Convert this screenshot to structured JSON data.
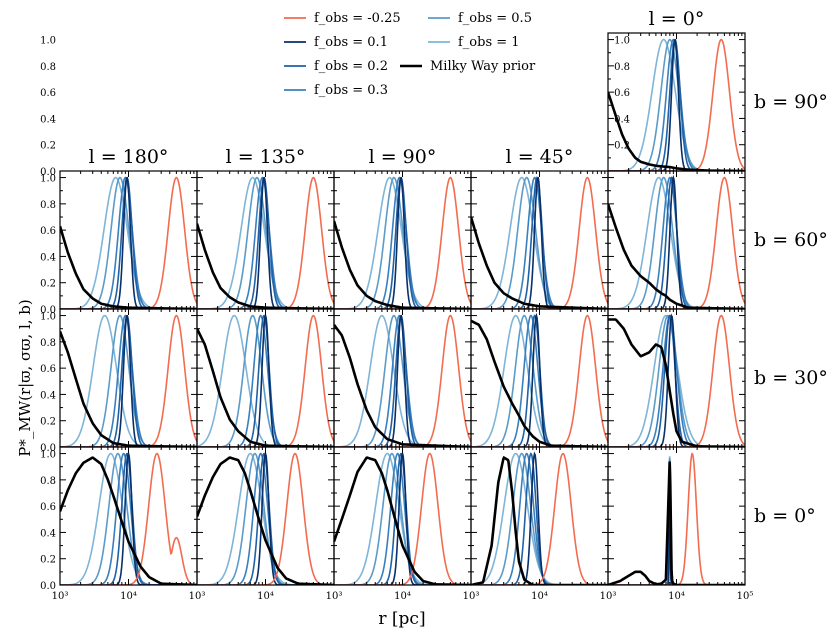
{
  "colors": {
    "f_m025": "#f26c4f",
    "f_01": "#08306b",
    "f_02": "#2161a6",
    "f_03": "#3a7fbd",
    "f_05": "#5a9bc9",
    "f_1": "#7eb5d8",
    "prior": "#000000"
  },
  "chart_data": {
    "type": "line",
    "figure": {
      "xlabel": "r [pc]",
      "ylabel": "P*_MW(r|ϖ, σϖ, l, b)",
      "xscale": "log",
      "xlim": [
        1000,
        100000
      ],
      "ylim": [
        0.0,
        1.05
      ],
      "xticklabels": [
        "10³",
        "10⁴",
        "10⁵"
      ],
      "yticks": [
        0.0,
        0.2,
        0.4,
        0.6,
        0.8,
        1.0
      ],
      "ytick_labels": [
        "0.0",
        "0.2",
        "0.4",
        "0.6",
        "0.8",
        "1.0"
      ],
      "col_titles": [
        "l = 180°",
        "l = 135°",
        "l = 90°",
        "l = 45°"
      ],
      "top_title": "l = 0°",
      "row_labels": [
        "b = 90°",
        "b = 60°",
        "b = 30°",
        "b = 0°"
      ],
      "legend": {
        "placement": "top-center",
        "entries": [
          {
            "label": "f_obs = -0.25",
            "key": "f_m025"
          },
          {
            "label": "f_obs = 0.1",
            "key": "f_01"
          },
          {
            "label": "f_obs = 0.2",
            "key": "f_02"
          },
          {
            "label": "f_obs = 0.3",
            "key": "f_03"
          },
          {
            "label": "f_obs = 0.5",
            "key": "f_05"
          },
          {
            "label": "f_obs = 1",
            "key": "f_1"
          },
          {
            "label": "Milky Way prior",
            "key": "prior"
          }
        ]
      }
    },
    "panels": [
      {
        "l": 0,
        "b": 90,
        "peaks": {
          "f_m025": 45000,
          "f_01": 9500,
          "f_02": 9500,
          "f_03": 9000,
          "f_05": 8000,
          "f_1": 6500
        },
        "prior": [
          [
            1000,
            0.6
          ],
          [
            1300,
            0.42
          ],
          [
            1600,
            0.28
          ],
          [
            2000,
            0.17
          ],
          [
            2500,
            0.1
          ],
          [
            3000,
            0.07
          ],
          [
            4000,
            0.05
          ],
          [
            5000,
            0.04
          ],
          [
            6000,
            0.035
          ],
          [
            8000,
            0.03
          ],
          [
            10000,
            0.02
          ],
          [
            15000,
            0.01
          ],
          [
            30000,
            0.003
          ],
          [
            100000,
            0
          ]
        ]
      },
      {
        "l": 180,
        "b": 60,
        "peaks": {
          "f_m025": 50000,
          "f_01": 9500,
          "f_02": 9500,
          "f_03": 9000,
          "f_05": 7500,
          "f_1": 6500
        },
        "prior": [
          [
            1000,
            0.63
          ],
          [
            1300,
            0.43
          ],
          [
            1700,
            0.27
          ],
          [
            2200,
            0.15
          ],
          [
            3000,
            0.08
          ],
          [
            4000,
            0.04
          ],
          [
            6000,
            0.02
          ],
          [
            10000,
            0.01
          ],
          [
            100000,
            0
          ]
        ]
      },
      {
        "l": 135,
        "b": 60,
        "peaks": {
          "f_m025": 50000,
          "f_01": 9500,
          "f_02": 9500,
          "f_03": 9000,
          "f_05": 7500,
          "f_1": 6500
        },
        "prior": [
          [
            1000,
            0.65
          ],
          [
            1300,
            0.45
          ],
          [
            1700,
            0.28
          ],
          [
            2200,
            0.16
          ],
          [
            3000,
            0.09
          ],
          [
            4000,
            0.05
          ],
          [
            6000,
            0.02
          ],
          [
            10000,
            0.01
          ],
          [
            100000,
            0
          ]
        ]
      },
      {
        "l": 90,
        "b": 60,
        "peaks": {
          "f_m025": 50000,
          "f_01": 9500,
          "f_02": 9500,
          "f_03": 9000,
          "f_05": 7500,
          "f_1": 6500
        },
        "prior": [
          [
            1000,
            0.67
          ],
          [
            1300,
            0.47
          ],
          [
            1700,
            0.3
          ],
          [
            2200,
            0.18
          ],
          [
            3000,
            0.1
          ],
          [
            4000,
            0.06
          ],
          [
            6000,
            0.03
          ],
          [
            10000,
            0.01
          ],
          [
            100000,
            0
          ]
        ]
      },
      {
        "l": 45,
        "b": 60,
        "peaks": {
          "f_m025": 50000,
          "f_01": 9500,
          "f_02": 9200,
          "f_03": 8500,
          "f_05": 6500,
          "f_1": 5500
        },
        "prior": [
          [
            1000,
            0.7
          ],
          [
            1300,
            0.5
          ],
          [
            1700,
            0.33
          ],
          [
            2200,
            0.2
          ],
          [
            3000,
            0.12
          ],
          [
            4000,
            0.08
          ],
          [
            6000,
            0.04
          ],
          [
            10000,
            0.02
          ],
          [
            100000,
            0
          ]
        ]
      },
      {
        "l": 0,
        "b": 60,
        "peaks": {
          "f_m025": 50000,
          "f_01": 9000,
          "f_02": 8500,
          "f_03": 8000,
          "f_05": 6500,
          "f_1": 5500
        },
        "prior": [
          [
            1000,
            0.8
          ],
          [
            1300,
            0.62
          ],
          [
            1700,
            0.45
          ],
          [
            2200,
            0.33
          ],
          [
            3000,
            0.25
          ],
          [
            4000,
            0.2
          ],
          [
            5000,
            0.15
          ],
          [
            6000,
            0.12
          ],
          [
            7000,
            0.1
          ],
          [
            8000,
            0.07
          ],
          [
            10000,
            0.04
          ],
          [
            15000,
            0.01
          ],
          [
            100000,
            0
          ]
        ]
      },
      {
        "l": 180,
        "b": 30,
        "peaks": {
          "f_m025": 50000,
          "f_01": 9500,
          "f_02": 9500,
          "f_03": 9000,
          "f_05": 7500,
          "f_1": 4500
        },
        "prior": [
          [
            1000,
            0.88
          ],
          [
            1300,
            0.72
          ],
          [
            1700,
            0.52
          ],
          [
            2200,
            0.33
          ],
          [
            3000,
            0.18
          ],
          [
            4000,
            0.09
          ],
          [
            6000,
            0.03
          ],
          [
            10000,
            0.01
          ],
          [
            100000,
            0
          ]
        ]
      },
      {
        "l": 135,
        "b": 30,
        "peaks": {
          "f_m025": 50000,
          "f_01": 10000,
          "f_02": 9500,
          "f_03": 8500,
          "f_05": 6500,
          "f_1": 3500
        },
        "prior": [
          [
            1000,
            0.9
          ],
          [
            1300,
            0.78
          ],
          [
            1700,
            0.58
          ],
          [
            2200,
            0.38
          ],
          [
            3000,
            0.21
          ],
          [
            4000,
            0.12
          ],
          [
            6000,
            0.04
          ],
          [
            10000,
            0.01
          ],
          [
            100000,
            0
          ]
        ]
      },
      {
        "l": 90,
        "b": 30,
        "peaks": {
          "f_m025": 50000,
          "f_01": 9500,
          "f_02": 9500,
          "f_03": 9000,
          "f_05": 7500,
          "f_1": 5000
        },
        "prior": [
          [
            1000,
            0.93
          ],
          [
            1300,
            0.85
          ],
          [
            1700,
            0.68
          ],
          [
            2200,
            0.48
          ],
          [
            3000,
            0.28
          ],
          [
            4000,
            0.15
          ],
          [
            6000,
            0.06
          ],
          [
            10000,
            0.02
          ],
          [
            100000,
            0
          ]
        ]
      },
      {
        "l": 45,
        "b": 30,
        "peaks": {
          "f_m025": 50000,
          "f_01": 9000,
          "f_02": 8500,
          "f_03": 7500,
          "f_05": 6000,
          "f_1": 4500
        },
        "prior": [
          [
            1000,
            0.96
          ],
          [
            1300,
            0.93
          ],
          [
            1700,
            0.82
          ],
          [
            2200,
            0.65
          ],
          [
            3000,
            0.46
          ],
          [
            4000,
            0.33
          ],
          [
            5000,
            0.24
          ],
          [
            6000,
            0.16
          ],
          [
            8000,
            0.08
          ],
          [
            10000,
            0.04
          ],
          [
            15000,
            0.01
          ],
          [
            100000,
            0
          ]
        ]
      },
      {
        "l": 0,
        "b": 30,
        "peaks": {
          "f_m025": 45000,
          "f_01": 8500,
          "f_02": 8000,
          "f_03": 8000,
          "f_05": 7500,
          "f_1": 7000
        },
        "prior": [
          [
            1000,
            0.97
          ],
          [
            1300,
            0.97
          ],
          [
            1700,
            0.9
          ],
          [
            2200,
            0.78
          ],
          [
            3000,
            0.69
          ],
          [
            4000,
            0.72
          ],
          [
            5000,
            0.78
          ],
          [
            6000,
            0.76
          ],
          [
            7000,
            0.62
          ],
          [
            8000,
            0.42
          ],
          [
            9000,
            0.25
          ],
          [
            10000,
            0.12
          ],
          [
            12000,
            0.04
          ],
          [
            20000,
            0.005
          ],
          [
            100000,
            0
          ]
        ]
      },
      {
        "l": 180,
        "b": 0,
        "peaks": {
          "f_m025": 26000,
          "f_01": 10000,
          "f_02": 9500,
          "f_03": 8500,
          "f_05": 7000,
          "f_1": 5500
        },
        "prior": [
          [
            1000,
            0.56
          ],
          [
            1300,
            0.72
          ],
          [
            1700,
            0.85
          ],
          [
            2200,
            0.93
          ],
          [
            3000,
            0.97
          ],
          [
            4000,
            0.92
          ],
          [
            5000,
            0.8
          ],
          [
            6000,
            0.68
          ],
          [
            8000,
            0.48
          ],
          [
            10000,
            0.33
          ],
          [
            15000,
            0.14
          ],
          [
            20000,
            0.06
          ],
          [
            30000,
            0.01
          ],
          [
            100000,
            0
          ]
        ],
        "neg_shoulder": true
      },
      {
        "l": 135,
        "b": 0,
        "peaks": {
          "f_m025": 27000,
          "f_01": 10000,
          "f_02": 9500,
          "f_03": 8500,
          "f_05": 7000,
          "f_1": 6000
        },
        "prior": [
          [
            1000,
            0.52
          ],
          [
            1300,
            0.68
          ],
          [
            1700,
            0.82
          ],
          [
            2200,
            0.92
          ],
          [
            3000,
            0.97
          ],
          [
            4000,
            0.95
          ],
          [
            5000,
            0.85
          ],
          [
            6000,
            0.72
          ],
          [
            8000,
            0.5
          ],
          [
            10000,
            0.34
          ],
          [
            15000,
            0.13
          ],
          [
            20000,
            0.05
          ],
          [
            30000,
            0.01
          ],
          [
            100000,
            0
          ]
        ]
      },
      {
        "l": 90,
        "b": 0,
        "peaks": {
          "f_m025": 25000,
          "f_01": 10000,
          "f_02": 9500,
          "f_03": 8500,
          "f_05": 7000,
          "f_1": 6000
        },
        "prior": [
          [
            1000,
            0.33
          ],
          [
            1300,
            0.5
          ],
          [
            1700,
            0.68
          ],
          [
            2200,
            0.86
          ],
          [
            3000,
            0.97
          ],
          [
            4000,
            0.95
          ],
          [
            5000,
            0.85
          ],
          [
            6000,
            0.72
          ],
          [
            8000,
            0.48
          ],
          [
            10000,
            0.3
          ],
          [
            15000,
            0.1
          ],
          [
            20000,
            0.03
          ],
          [
            30000,
            0.005
          ],
          [
            100000,
            0
          ]
        ]
      },
      {
        "l": 45,
        "b": 0,
        "peaks": {
          "f_m025": 22000,
          "f_01": 8500,
          "f_02": 7500,
          "f_03": 6500,
          "f_05": 5500,
          "f_1": 4500
        },
        "prior": [
          [
            1000,
            0
          ],
          [
            1500,
            0.02
          ],
          [
            2000,
            0.3
          ],
          [
            2500,
            0.78
          ],
          [
            3000,
            0.97
          ],
          [
            3500,
            0.95
          ],
          [
            4000,
            0.7
          ],
          [
            4500,
            0.4
          ],
          [
            5000,
            0.18
          ],
          [
            6000,
            0.04
          ],
          [
            8000,
            0
          ],
          [
            100000,
            0
          ]
        ]
      },
      {
        "l": 0,
        "b": 0,
        "peaks": {
          "f_m025": 17000,
          "f_01": 8000,
          "f_02": 8000,
          "f_03": 8000,
          "f_05": 8000,
          "f_1": 8000
        },
        "narrow": true,
        "prior": [
          [
            1000,
            0
          ],
          [
            1500,
            0.03
          ],
          [
            2000,
            0.07
          ],
          [
            2500,
            0.1
          ],
          [
            3000,
            0.1
          ],
          [
            3500,
            0.07
          ],
          [
            4000,
            0.03
          ],
          [
            5000,
            0.005
          ],
          [
            6000,
            0.01
          ],
          [
            7000,
            0.04
          ],
          [
            8000,
            0.99
          ],
          [
            8500,
            0.04
          ],
          [
            9000,
            0.01
          ],
          [
            10000,
            0
          ],
          [
            100000,
            0
          ]
        ]
      }
    ]
  }
}
